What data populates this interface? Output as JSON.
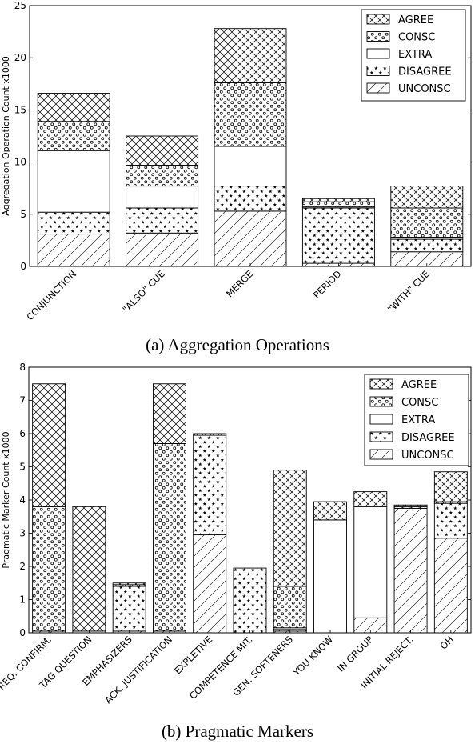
{
  "captions": {
    "a": "(a) Aggregation Operations",
    "b": "(b) Pragmatic Markers"
  },
  "series_order": [
    "UNCONSC",
    "DISAGREE",
    "EXTRA",
    "CONSC",
    "AGREE"
  ],
  "legend_order": [
    "AGREE",
    "CONSC",
    "EXTRA",
    "DISAGREE",
    "UNCONSC"
  ],
  "chart_data": [
    {
      "type": "bar",
      "stacked": true,
      "title": "",
      "ylabel": "Aggregation Operation Count x1000",
      "xlabel": "",
      "ylim": [
        0,
        25
      ],
      "yticks": [
        0,
        5,
        10,
        15,
        20,
        25
      ],
      "legend": "top-right",
      "categories": [
        "CONJUNCTION",
        "\"ALSO\" CUE",
        "MERGE",
        "PERIOD",
        "\"WITH\" CUE"
      ],
      "series": [
        {
          "name": "UNCONSC",
          "values": [
            3.1,
            3.2,
            5.3,
            0.3,
            1.4
          ]
        },
        {
          "name": "DISAGREE",
          "values": [
            2.1,
            2.4,
            2.4,
            5.3,
            1.2
          ]
        },
        {
          "name": "EXTRA",
          "values": [
            5.9,
            2.1,
            3.8,
            0.1,
            0.2
          ]
        },
        {
          "name": "CONSC",
          "values": [
            2.8,
            2.0,
            6.1,
            0.5,
            2.8
          ]
        },
        {
          "name": "AGREE",
          "values": [
            2.7,
            2.8,
            5.2,
            0.3,
            2.1
          ]
        }
      ]
    },
    {
      "type": "bar",
      "stacked": true,
      "title": "",
      "ylabel": "Pragmatic Marker Count x1000",
      "xlabel": "",
      "ylim": [
        0,
        8
      ],
      "yticks": [
        0,
        1,
        2,
        3,
        4,
        5,
        6,
        7,
        8
      ],
      "legend": "top-right",
      "categories": [
        "REQ. CONFIRM.",
        "TAG QUESTION",
        "EMPHASIZERS",
        "ACK. JUSTIFICATION",
        "EXPLETIVE",
        "COMPETENCE MIT.",
        "GEN. SOFTENERS",
        "YOU KNOW",
        "IN GROUP",
        "INITIAL REJECT.",
        "OH"
      ],
      "series": [
        {
          "name": "UNCONSC",
          "values": [
            0.05,
            0.0,
            0.05,
            0.05,
            2.95,
            0.0,
            0.05,
            0.0,
            0.45,
            3.75,
            2.85
          ]
        },
        {
          "name": "DISAGREE",
          "values": [
            0.0,
            0.0,
            1.35,
            0.0,
            3.0,
            1.95,
            0.05,
            0.0,
            0.0,
            0.05,
            1.05
          ]
        },
        {
          "name": "EXTRA",
          "values": [
            0.0,
            0.05,
            0.0,
            0.0,
            0.0,
            0.0,
            0.05,
            3.4,
            3.35,
            0.0,
            0.0
          ]
        },
        {
          "name": "CONSC",
          "values": [
            3.75,
            0.0,
            0.05,
            5.65,
            0.0,
            0.0,
            1.25,
            0.0,
            0.0,
            0.05,
            0.05
          ]
        },
        {
          "name": "AGREE",
          "values": [
            3.7,
            3.75,
            0.05,
            1.8,
            0.05,
            0.0,
            3.5,
            0.55,
            0.45,
            0.0,
            0.9
          ]
        }
      ]
    }
  ]
}
